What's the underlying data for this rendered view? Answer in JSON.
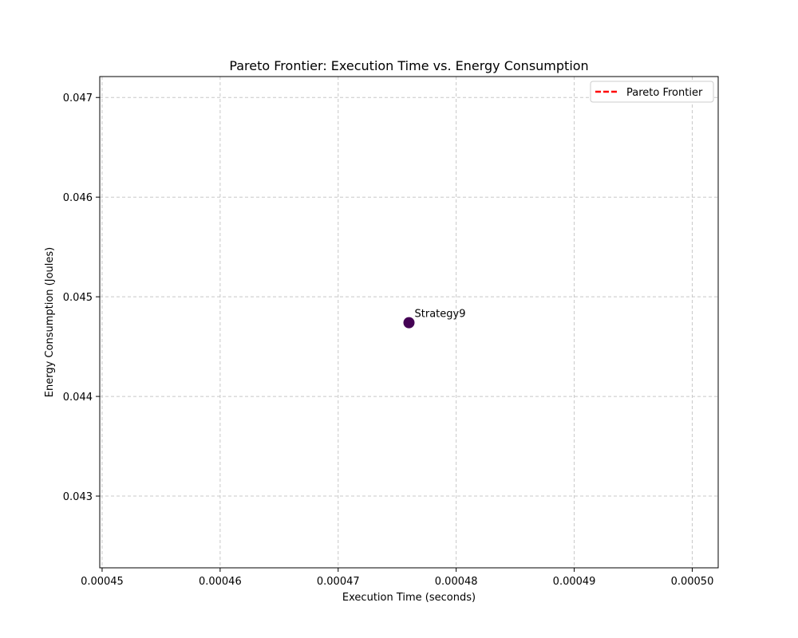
{
  "chart_data": {
    "type": "scatter",
    "title": "Pareto Frontier: Execution Time vs. Energy Consumption",
    "xlabel": "Execution Time (seconds)",
    "ylabel": "Energy Consumption (Joules)",
    "xlim": [
      0.0004498,
      0.0005022
    ],
    "ylim": [
      0.04228,
      0.04721
    ],
    "xticks": [
      0.00045,
      0.00046,
      0.00047,
      0.00048,
      0.00049,
      0.0005
    ],
    "xtick_labels": [
      "0.00045",
      "0.00046",
      "0.00047",
      "0.00048",
      "0.00049",
      "0.00050"
    ],
    "yticks": [
      0.043,
      0.044,
      0.045,
      0.046,
      0.047
    ],
    "ytick_labels": [
      "0.043",
      "0.044",
      "0.045",
      "0.046",
      "0.047"
    ],
    "grid": true,
    "legend_position": "top-right",
    "legend": [
      {
        "label": "Pareto Frontier",
        "style": "dashed-line",
        "color": "#ff0000"
      }
    ],
    "points": [
      {
        "x": 0.000476,
        "y": 0.04474,
        "label": "Strategy9",
        "color": "#440154"
      }
    ],
    "pareto_frontier": []
  }
}
